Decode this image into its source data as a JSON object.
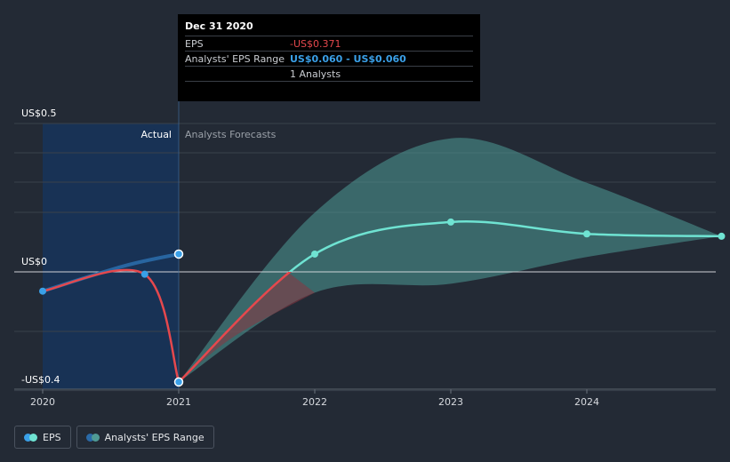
{
  "tooltip": {
    "date": "Dec 31 2020",
    "eps_label": "EPS",
    "eps_value": "-US$0.371",
    "range_label": "Analysts' EPS Range",
    "range_value": "US$0.060 - US$0.060",
    "analysts": "1 Analysts"
  },
  "legend": {
    "eps": "EPS",
    "range": "Analysts' EPS Range"
  },
  "colors": {
    "background": "#232a35",
    "actual_region": "#16345a",
    "eps_actual": "#e5484d",
    "eps_forecast": "#6fe3d2",
    "range_fill": "#4f9a95",
    "negative_fill": "#8a3540",
    "actual_range_line": "#2a6aa8",
    "point_blue": "#3aa0e8"
  },
  "chart_data": {
    "type": "line",
    "y_ticks": [
      {
        "value": 0.5,
        "label": "US$0.5"
      },
      {
        "value": 0,
        "label": "US$0"
      },
      {
        "value": -0.4,
        "label": "-US$0.4"
      }
    ],
    "x_ticks": [
      {
        "value": 2020,
        "label": "2020"
      },
      {
        "value": 2021,
        "label": "2021"
      },
      {
        "value": 2022,
        "label": "2022"
      },
      {
        "value": 2023,
        "label": "2023"
      },
      {
        "value": 2024,
        "label": "2024"
      }
    ],
    "xlim": [
      2019.8,
      2024.99
    ],
    "ylim": [
      -0.4,
      0.5
    ],
    "region_labels": {
      "actual": "Actual",
      "forecast": "Analysts Forecasts"
    },
    "actual_boundary": 2021,
    "series": [
      {
        "name": "EPS",
        "kind": "actual",
        "points": [
          [
            2020.0,
            -0.065
          ],
          [
            2020.75,
            -0.008
          ],
          [
            2021.0,
            -0.371
          ]
        ]
      },
      {
        "name": "EPS",
        "kind": "forecast",
        "points": [
          [
            2021.0,
            -0.371
          ],
          [
            2022.0,
            0.06
          ],
          [
            2023.0,
            0.168
          ],
          [
            2024.0,
            0.128
          ],
          [
            2024.99,
            0.12
          ]
        ]
      },
      {
        "name": "Analysts' EPS Range",
        "kind": "actual_range",
        "points": [
          [
            2020.0,
            -0.065
          ],
          [
            2020.6,
            0.02
          ],
          [
            2021.0,
            0.06
          ]
        ]
      }
    ],
    "range_band": {
      "upper": [
        [
          2021.0,
          -0.371
        ],
        [
          2022.0,
          0.2
        ],
        [
          2023.0,
          0.45
        ],
        [
          2024.0,
          0.3
        ],
        [
          2024.99,
          0.12
        ]
      ],
      "lower": [
        [
          2021.0,
          -0.371
        ],
        [
          2022.0,
          -0.07
        ],
        [
          2023.0,
          -0.04
        ],
        [
          2024.0,
          0.05
        ],
        [
          2024.99,
          0.12
        ]
      ]
    }
  }
}
